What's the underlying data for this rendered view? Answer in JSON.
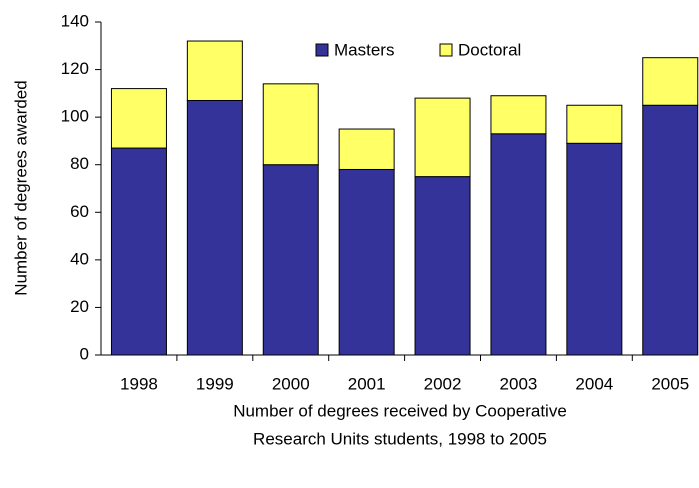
{
  "chart_data": {
    "type": "stacked_bar",
    "ylabel": "Number of degrees awarded",
    "xlabel": [
      "Number of degrees received by Cooperative",
      "Research Units students, 1998 to 2005"
    ],
    "categories": [
      "1998",
      "1999",
      "2000",
      "2001",
      "2002",
      "2003",
      "2004",
      "2005"
    ],
    "series": [
      {
        "name": "Masters",
        "color": "#333399",
        "values": [
          87,
          107,
          80,
          78,
          75,
          93,
          89,
          105
        ]
      },
      {
        "name": "Doctoral",
        "color": "#ffff66",
        "values": [
          25,
          25,
          34,
          17,
          33,
          16,
          16,
          20
        ]
      }
    ],
    "ylim": [
      0,
      140
    ],
    "yticks": [
      0,
      20,
      40,
      60,
      80,
      100,
      120,
      140
    ],
    "grid": false,
    "legend": "top"
  }
}
